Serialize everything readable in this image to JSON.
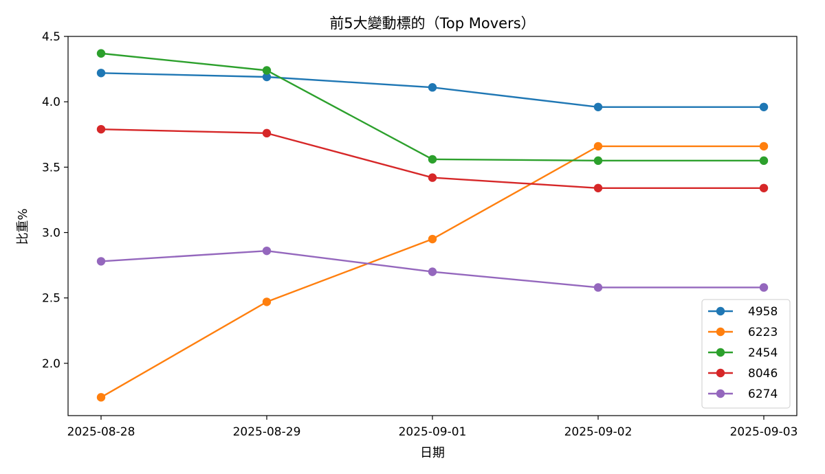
{
  "chart_data": {
    "type": "line",
    "title": "前5大變動標的（Top Movers）",
    "xlabel": "日期",
    "ylabel": "比重%",
    "x": [
      "2025-08-28",
      "2025-08-29",
      "2025-09-01",
      "2025-09-02",
      "2025-09-03"
    ],
    "ylim": [
      1.6,
      4.5
    ],
    "yticks": [
      2.0,
      2.5,
      3.0,
      3.5,
      4.0,
      4.5
    ],
    "ytick_labels": [
      "2.0",
      "2.5",
      "3.0",
      "3.5",
      "4.0",
      "4.5"
    ],
    "grid": false,
    "legend_position": "lower-right",
    "series": [
      {
        "name": "4958",
        "color": "#1f77b4",
        "values": [
          4.22,
          4.19,
          4.11,
          3.96,
          3.96
        ]
      },
      {
        "name": "6223",
        "color": "#ff7f0e",
        "values": [
          1.74,
          2.47,
          2.95,
          3.66,
          3.66
        ]
      },
      {
        "name": "2454",
        "color": "#2ca02c",
        "values": [
          4.37,
          4.24,
          3.56,
          3.55,
          3.55
        ]
      },
      {
        "name": "8046",
        "color": "#d62728",
        "values": [
          3.79,
          3.76,
          3.42,
          3.34,
          3.34
        ]
      },
      {
        "name": "6274",
        "color": "#9467bd",
        "values": [
          2.78,
          2.86,
          2.7,
          2.58,
          2.58
        ]
      }
    ]
  }
}
